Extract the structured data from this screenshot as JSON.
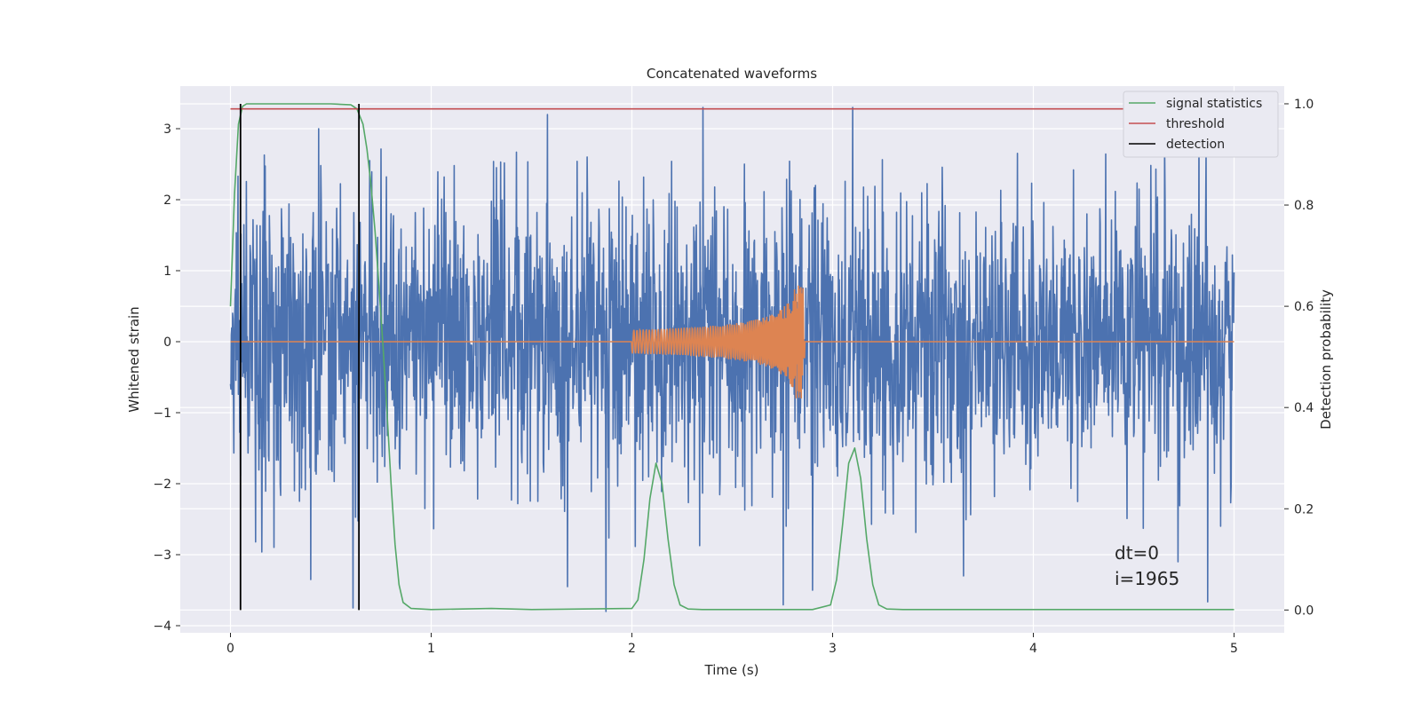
{
  "chart_data": {
    "type": "line",
    "title": "Concatenated waveforms",
    "xlabel": "Time (s)",
    "ylabel": "Whitened strain",
    "y2label": "Detection probability",
    "xlim": [
      -0.25,
      5.25
    ],
    "ylim": [
      -4.1,
      3.6
    ],
    "y2lim": [
      -0.045,
      1.035
    ],
    "x_ticks": [
      0,
      1,
      2,
      3,
      4,
      5
    ],
    "y_ticks": [
      -4,
      -3,
      -2,
      -1,
      0,
      1,
      2,
      3
    ],
    "y2_ticks": [
      0.0,
      0.2,
      0.4,
      0.6,
      0.8,
      1.0
    ],
    "y_tick_labels": [
      "−4",
      "−3",
      "−2",
      "−1",
      "0",
      "1",
      "2",
      "3"
    ],
    "y2_tick_labels": [
      "0.0",
      "0.2",
      "0.4",
      "0.6",
      "0.8",
      "1.0"
    ],
    "grid": true,
    "legend_position": "top-right",
    "legend": [
      {
        "label": "signal statistics",
        "color": "#55a868"
      },
      {
        "label": "threshold",
        "color": "#c44e52"
      },
      {
        "label": "detection",
        "color": "#000000"
      }
    ],
    "series": [
      {
        "color": "#4c72b0",
        "axis": "left",
        "kind": "noise",
        "x_range": [
          0,
          5
        ],
        "typical_amplitude": 1.0,
        "peak_range": [
          -3.8,
          3.3
        ],
        "spikes": [
          {
            "x": 1.58,
            "y": 3.2
          },
          {
            "x": 3.1,
            "y": 3.3
          },
          {
            "x": 0.44,
            "y": 3.0
          },
          {
            "x": 0.61,
            "y": -3.75
          },
          {
            "x": 0.4,
            "y": -3.35
          },
          {
            "x": 1.68,
            "y": -3.45
          },
          {
            "x": 2.9,
            "y": -3.5
          },
          {
            "x": 4.72,
            "y": -3.1
          }
        ]
      },
      {
        "color": "#dd8452",
        "axis": "left",
        "kind": "chirp",
        "x": [
          0,
          2.0,
          2.85,
          2.86,
          5
        ],
        "start": 2.0,
        "end": 2.86,
        "peak_amplitude": 0.8
      },
      {
        "name": "signal statistics",
        "color": "#55a868",
        "axis": "right",
        "x": [
          0,
          0.02,
          0.04,
          0.06,
          0.08,
          0.1,
          0.3,
          0.5,
          0.6,
          0.63,
          0.66,
          0.68,
          0.7,
          0.72,
          0.74,
          0.76,
          0.78,
          0.8,
          0.82,
          0.84,
          0.86,
          0.9,
          1.0,
          1.3,
          1.5,
          2.0,
          2.03,
          2.06,
          2.09,
          2.12,
          2.15,
          2.18,
          2.21,
          2.24,
          2.28,
          2.35,
          2.9,
          2.99,
          3.02,
          3.05,
          3.08,
          3.11,
          3.14,
          3.17,
          3.2,
          3.23,
          3.27,
          3.35,
          5.0
        ],
        "values": [
          0.6,
          0.82,
          0.96,
          0.995,
          1.0,
          1.0,
          1.0,
          1.0,
          0.998,
          0.99,
          0.96,
          0.91,
          0.84,
          0.75,
          0.64,
          0.52,
          0.39,
          0.25,
          0.13,
          0.05,
          0.015,
          0.003,
          0.001,
          0.003,
          0.001,
          0.003,
          0.02,
          0.1,
          0.22,
          0.29,
          0.25,
          0.14,
          0.05,
          0.01,
          0.002,
          0.001,
          0.001,
          0.01,
          0.06,
          0.17,
          0.29,
          0.32,
          0.26,
          0.14,
          0.05,
          0.01,
          0.002,
          0.001,
          0.001
        ]
      },
      {
        "name": "threshold",
        "color": "#c44e52",
        "axis": "right",
        "x": [
          0,
          5
        ],
        "values": [
          0.99,
          0.99
        ]
      }
    ],
    "detections": [
      0.05,
      0.64
    ],
    "annotations": [
      "dt=0",
      "i=1965"
    ]
  }
}
